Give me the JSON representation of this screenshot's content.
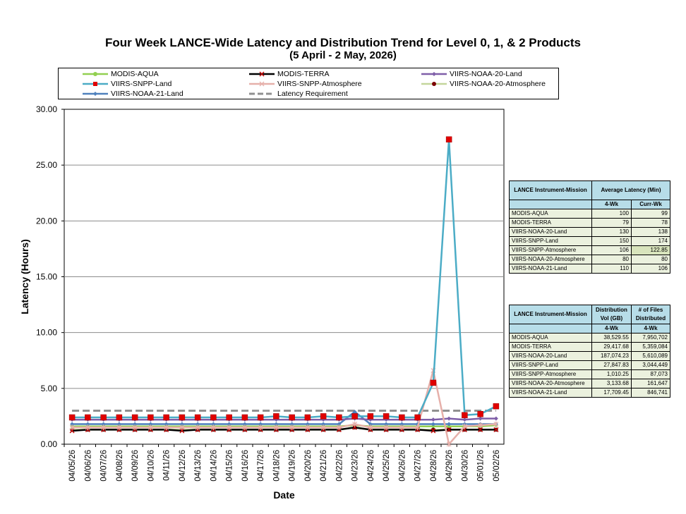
{
  "chart_data": {
    "type": "line",
    "title": "Four Week LANCE-Wide Latency and Distribution Trend for Level 0, 1, & 2 Products",
    "subtitle": "(5 April   - 2 May, 2026)",
    "xlabel": "Date",
    "ylabel": "Latency (Hours)",
    "ylim": [
      0,
      30
    ],
    "yticks": [
      "0.00",
      "5.00",
      "10.00",
      "15.00",
      "20.00",
      "25.00",
      "30.00"
    ],
    "grid": "horizontal",
    "legend_position": "top",
    "x": [
      "04/05/26",
      "04/06/26",
      "04/07/26",
      "04/08/26",
      "04/09/26",
      "04/10/26",
      "04/11/26",
      "04/12/26",
      "04/13/26",
      "04/14/26",
      "04/15/26",
      "04/16/26",
      "04/17/26",
      "04/18/26",
      "04/19/26",
      "04/20/26",
      "04/21/26",
      "04/22/26",
      "04/23/26",
      "04/24/26",
      "04/25/26",
      "04/26/26",
      "04/27/26",
      "04/28/26",
      "04/29/26",
      "04/30/26",
      "05/01/26",
      "05/02/26"
    ],
    "series": [
      {
        "name": "MODIS-AQUA",
        "color": "#92d050",
        "marker": "circle",
        "values": [
          1.6,
          1.6,
          1.6,
          1.6,
          1.6,
          1.6,
          1.6,
          1.6,
          1.6,
          1.6,
          1.6,
          1.6,
          1.6,
          1.6,
          1.6,
          1.6,
          1.6,
          1.6,
          1.7,
          1.6,
          1.6,
          1.6,
          1.6,
          1.6,
          1.6,
          1.6,
          1.6,
          1.7
        ]
      },
      {
        "name": "MODIS-TERRA",
        "color": "#000000",
        "marker": "x",
        "values": [
          1.2,
          1.3,
          1.3,
          1.3,
          1.3,
          1.3,
          1.3,
          1.2,
          1.3,
          1.3,
          1.3,
          1.3,
          1.3,
          1.3,
          1.3,
          1.3,
          1.3,
          1.3,
          1.5,
          1.3,
          1.3,
          1.3,
          1.3,
          1.2,
          1.3,
          1.3,
          1.3,
          1.3
        ]
      },
      {
        "name": "VIIRS-NOAA-20-Land",
        "color": "#7f5fa8",
        "marker": "diamond",
        "values": [
          2.2,
          2.2,
          2.2,
          2.2,
          2.2,
          2.2,
          2.2,
          2.2,
          2.2,
          2.2,
          2.2,
          2.2,
          2.2,
          2.2,
          2.2,
          2.2,
          2.2,
          2.2,
          2.3,
          2.2,
          2.2,
          2.2,
          2.2,
          2.2,
          2.3,
          2.2,
          2.3,
          2.3
        ]
      },
      {
        "name": "VIIRS-SNPP-Land",
        "color": "#4bacc6",
        "marker": "square-red",
        "values": [
          2.4,
          2.4,
          2.4,
          2.4,
          2.4,
          2.4,
          2.4,
          2.4,
          2.4,
          2.4,
          2.4,
          2.4,
          2.4,
          2.5,
          2.4,
          2.4,
          2.5,
          2.4,
          2.5,
          2.5,
          2.5,
          2.4,
          2.4,
          5.5,
          27.3,
          2.6,
          2.7,
          3.4
        ]
      },
      {
        "name": "VIIRS-SNPP-Atmosphere",
        "color": "#e6b0aa",
        "marker": "star",
        "values": [
          1.5,
          1.5,
          1.5,
          1.5,
          1.5,
          1.5,
          1.5,
          1.5,
          1.5,
          1.5,
          1.5,
          1.5,
          1.5,
          1.5,
          1.5,
          1.5,
          1.5,
          1.5,
          1.8,
          1.5,
          1.5,
          1.5,
          1.5,
          6.6,
          0.0,
          1.6,
          1.7,
          1.8
        ]
      },
      {
        "name": "VIIRS-NOAA-20-Atmosphere",
        "color": "#c3d69b",
        "marker": "dot-dark",
        "values": [
          1.3,
          1.3,
          1.3,
          1.3,
          1.3,
          1.3,
          1.3,
          1.3,
          1.3,
          1.3,
          1.3,
          1.3,
          1.3,
          1.3,
          1.3,
          1.3,
          1.3,
          1.3,
          1.5,
          1.3,
          1.3,
          1.3,
          1.3,
          1.3,
          1.3,
          1.3,
          1.3,
          1.3
        ]
      },
      {
        "name": "VIIRS-NOAA-21-Land",
        "color": "#4f81bd",
        "marker": "diamond",
        "values": [
          1.8,
          1.8,
          1.8,
          1.8,
          1.8,
          1.8,
          1.8,
          1.8,
          1.8,
          1.8,
          1.8,
          1.8,
          1.8,
          1.8,
          1.8,
          1.8,
          1.8,
          1.8,
          2.9,
          1.8,
          1.8,
          1.8,
          1.8,
          1.8,
          1.8,
          1.8,
          1.8,
          1.8
        ]
      },
      {
        "name": "Latency Requirement",
        "color": "#909090",
        "marker": "none",
        "dash": true,
        "values": [
          3,
          3,
          3,
          3,
          3,
          3,
          3,
          3,
          3,
          3,
          3,
          3,
          3,
          3,
          3,
          3,
          3,
          3,
          3,
          3,
          3,
          3,
          3,
          3,
          3,
          3,
          3,
          3
        ]
      }
    ]
  },
  "latency_table": {
    "header_mission": "LANCE Instrument-Mission",
    "header_avg": "Average Latency (Min)",
    "col1": "4-Wk",
    "col2": "Curr-Wk",
    "rows": [
      {
        "mission": "MODIS-AQUA",
        "wk4": "100",
        "curr": "99"
      },
      {
        "mission": "MODIS-TERRA",
        "wk4": "79",
        "curr": "78"
      },
      {
        "mission": "VIIRS-NOAA-20-Land",
        "wk4": "130",
        "curr": "138"
      },
      {
        "mission": "VIIRS-SNPP-Land",
        "wk4": "150",
        "curr": "174"
      },
      {
        "mission": "VIIRS-SNPP-Atmosphere",
        "wk4": "106",
        "curr": "122.85"
      },
      {
        "mission": "VIIRS-NOAA-20-Atmosphere",
        "wk4": "80",
        "curr": "80"
      },
      {
        "mission": "VIIRS-NOAA-21-Land",
        "wk4": "110",
        "curr": "106"
      }
    ]
  },
  "distribution_table": {
    "header_mission": "LANCE Instrument-Mission",
    "header_vol": "Distribution Vol (GB)",
    "header_files": "# of Files Distributed",
    "col1": "4-Wk",
    "col2": "4-Wk",
    "rows": [
      {
        "mission": "MODIS-AQUA",
        "vol": "38,529.55",
        "files": "7,950,702"
      },
      {
        "mission": "MODIS-TERRA",
        "vol": "29,417.68",
        "files": "5,359,084"
      },
      {
        "mission": "VIIRS-NOAA-20-Land",
        "vol": "187,074.23",
        "files": "5,610,089"
      },
      {
        "mission": "VIIRS-SNPP-Land",
        "vol": "27,847.83",
        "files": "3,044,449"
      },
      {
        "mission": "VIIRS-SNPP-Atmosphere",
        "vol": "1,010.25",
        "files": "87,073"
      },
      {
        "mission": "VIIRS-NOAA-20-Atmosphere",
        "vol": "3,133.68",
        "files": "161,647"
      },
      {
        "mission": "VIIRS-NOAA-21-Land",
        "vol": "17,709.45",
        "files": "846,741"
      }
    ]
  }
}
